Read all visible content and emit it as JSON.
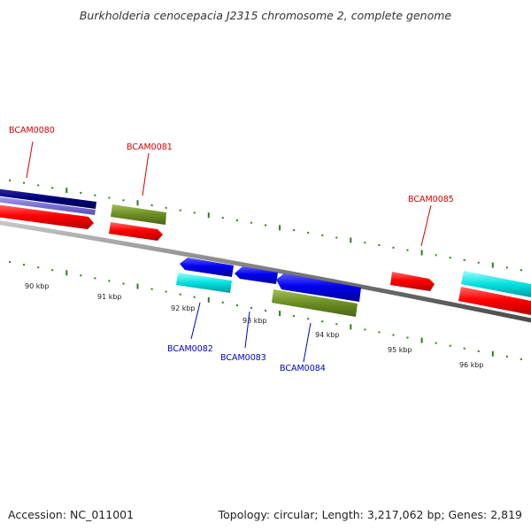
{
  "title": "Burkholderia cenocepacia J2315 chromosome 2, complete genome",
  "footer": {
    "accession": "Accession: NC_011001",
    "summary": "Topology: circular; Length: 3,217,062 bp; Genes: 2,819"
  },
  "scale_labels": [
    "90 kbp",
    "91 kbp",
    "92 kbp",
    "93 kbp",
    "94 kbp",
    "95 kbp",
    "96 kbp"
  ],
  "gene_labels": {
    "BCAM0080": "BCAM0080",
    "BCAM0081": "BCAM0081",
    "BCAM0082": "BCAM0082",
    "BCAM0083": "BCAM0083",
    "BCAM0084": "BCAM0084",
    "BCAM0085": "BCAM0085"
  },
  "colors": {
    "forward_label": "#d40000",
    "reverse_label": "#0000cc",
    "red_feature": "#ff0000",
    "blue_feature": "#0000ee",
    "navy_feature": "#00007a",
    "lavender_feature": "#7a6fd6",
    "olive_feature": "#6b8e23",
    "cyan_feature": "#00d8d8",
    "backbone": "#808080",
    "tick": "#2e7d1e"
  }
}
